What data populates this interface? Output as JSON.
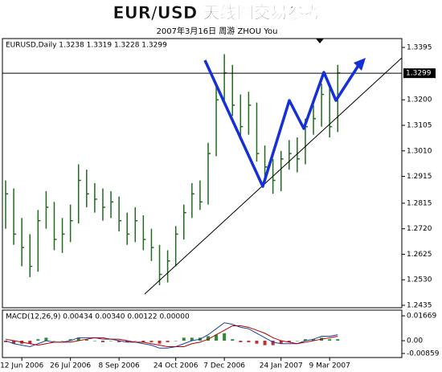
{
  "title": "EUR/USD 天线图交易参考",
  "subtitle": "2007年3月16日    周游 ZHOU You",
  "chart_data": [
    {
      "type": "hlc",
      "label": "EURUSD,Daily 1.3238 1.3319 1.3228 1.3299",
      "categories": [
        null,
        null,
        "12 Jun 2006",
        null,
        null,
        null,
        null,
        null,
        "26 Jul 2006",
        null,
        null,
        null,
        null,
        null,
        "8 Sep 2006",
        null,
        null,
        null,
        null,
        null,
        null,
        "24 Oct 2006",
        null,
        null,
        null,
        null,
        null,
        "7 Dec 2006",
        null,
        null,
        null,
        null,
        null,
        null,
        "24 Jan 2007",
        null,
        null,
        null,
        null,
        null,
        "9 Mar 2007",
        null
      ],
      "high": [
        1.29,
        1.287,
        1.276,
        1.27,
        1.279,
        1.286,
        1.282,
        1.276,
        1.281,
        1.296,
        1.294,
        1.289,
        1.287,
        1.286,
        1.284,
        1.278,
        1.28,
        1.277,
        1.272,
        1.266,
        1.264,
        1.273,
        1.281,
        1.289,
        1.29,
        1.304,
        1.325,
        1.337,
        1.333,
        1.322,
        1.323,
        1.319,
        1.303,
        1.298,
        1.301,
        1.305,
        1.306,
        1.313,
        1.318,
        1.326,
        1.325,
        1.333
      ],
      "low": [
        1.272,
        1.266,
        1.258,
        1.254,
        1.256,
        1.272,
        1.264,
        1.263,
        1.267,
        1.274,
        1.28,
        1.278,
        1.275,
        1.276,
        1.271,
        1.266,
        1.267,
        1.264,
        1.26,
        1.251,
        1.252,
        1.258,
        1.268,
        1.276,
        1.279,
        1.281,
        1.299,
        1.318,
        1.314,
        1.305,
        1.307,
        1.297,
        1.29,
        1.285,
        1.286,
        1.294,
        1.293,
        1.296,
        1.307,
        1.31,
        1.306,
        1.308
      ],
      "close": [
        1.285,
        1.27,
        1.265,
        1.258,
        1.275,
        1.28,
        1.268,
        1.27,
        1.275,
        1.29,
        1.285,
        1.283,
        1.28,
        1.282,
        1.275,
        1.27,
        1.275,
        1.268,
        1.265,
        1.255,
        1.26,
        1.27,
        1.278,
        1.285,
        1.282,
        1.3,
        1.32,
        1.33,
        1.318,
        1.31,
        1.318,
        1.3,
        1.295,
        1.29,
        1.298,
        1.3,
        1.298,
        1.31,
        1.313,
        1.322,
        1.31,
        1.33
      ],
      "color": "#1f6b1f",
      "last_price": 1.3299,
      "ylim": [
        1.2426,
        1.3428
      ],
      "yticks": [
        1.3395,
        {
          "value": 1.32,
          "label": "1.3200"
        },
        1.3105,
        {
          "value": 1.301,
          "label": "1.3010"
        },
        1.2915,
        1.2815,
        {
          "value": 1.272,
          "label": "1.2720"
        },
        1.2625,
        {
          "value": 1.253,
          "label": "1.2530"
        },
        1.2435
      ]
    },
    {
      "type": "macd",
      "label": "MACD(12,26,9) 0.00434 0.00340 0.00122 0.00000",
      "macd": [
        0.0,
        -0.002,
        -0.003,
        -0.004,
        -0.002,
        0.0,
        -0.001,
        -0.001,
        0.0,
        0.002,
        0.002,
        0.002,
        0.001,
        0.001,
        0.0,
        -0.001,
        -0.001,
        -0.002,
        -0.003,
        -0.005,
        -0.005,
        -0.004,
        -0.002,
        0.0,
        0.001,
        0.004,
        0.008,
        0.012,
        0.011,
        0.009,
        0.008,
        0.005,
        0.002,
        -0.001,
        -0.002,
        -0.002,
        -0.002,
        0.0,
        0.001,
        0.003,
        0.003,
        0.004
      ],
      "signal": [
        0.001,
        0.0,
        -0.001,
        -0.002,
        -0.003,
        -0.002,
        -0.001,
        -0.001,
        -0.001,
        0.0,
        0.001,
        0.002,
        0.002,
        0.001,
        0.001,
        0.0,
        -0.001,
        -0.001,
        -0.002,
        -0.003,
        -0.004,
        -0.004,
        -0.004,
        -0.002,
        -0.001,
        0.001,
        0.004,
        0.007,
        0.01,
        0.01,
        0.009,
        0.007,
        0.005,
        0.002,
        0.0,
        -0.001,
        -0.002,
        -0.001,
        0.0,
        0.001,
        0.002,
        0.003
      ],
      "histogram": [
        -0.001,
        -0.002,
        -0.002,
        -0.002,
        0.001,
        0.002,
        0.0,
        0.0,
        0.001,
        0.002,
        0.001,
        0.0,
        -0.001,
        0.0,
        -0.001,
        -0.001,
        0.0,
        -0.001,
        -0.001,
        -0.002,
        -0.001,
        0.0,
        0.002,
        0.002,
        0.002,
        0.003,
        0.004,
        0.005,
        0.001,
        -0.001,
        -0.001,
        -0.002,
        -0.003,
        -0.003,
        -0.002,
        -0.001,
        0.0,
        0.001,
        0.001,
        0.002,
        0.001,
        0.001
      ],
      "macd_color": "#1a3fa0",
      "signal_color": "#b00000",
      "histogram_colors": [
        "#2e8b2e",
        "#c03030"
      ],
      "ylim": [
        -0.0113,
        0.0205
      ],
      "yticks": [
        0.01669,
        {
          "value": 0,
          "label": "0.00"
        },
        -0.00859
      ]
    }
  ]
}
